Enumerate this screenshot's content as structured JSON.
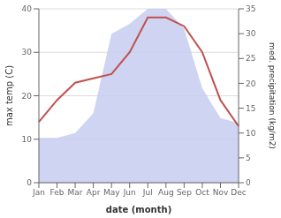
{
  "chart_data": {
    "type": "line",
    "categories": [
      "Jan",
      "Feb",
      "Mar",
      "Apr",
      "May",
      "Jun",
      "Jul",
      "Aug",
      "Sep",
      "Oct",
      "Nov",
      "Dec"
    ],
    "xlabel": "date (month)",
    "ylabel": "max temp (C)",
    "y2label": "med. precipitation (kg/m2)",
    "ylim": [
      0,
      40
    ],
    "yticks": [
      0,
      10,
      20,
      30,
      40
    ],
    "y2lim": [
      0,
      35
    ],
    "y2ticks": [
      0,
      5,
      10,
      15,
      20,
      25,
      30,
      35
    ],
    "grid": true,
    "series": [
      {
        "type": "area",
        "color": "#c5cdf0",
        "axis": "y2",
        "values": [
          9,
          9,
          10,
          14,
          30,
          32,
          35,
          35,
          31,
          19,
          13,
          12
        ]
      },
      {
        "type": "line",
        "color": "#c0504d",
        "values": [
          14,
          19,
          23,
          24,
          25,
          30,
          38,
          38,
          36,
          30,
          19,
          13
        ]
      }
    ]
  }
}
